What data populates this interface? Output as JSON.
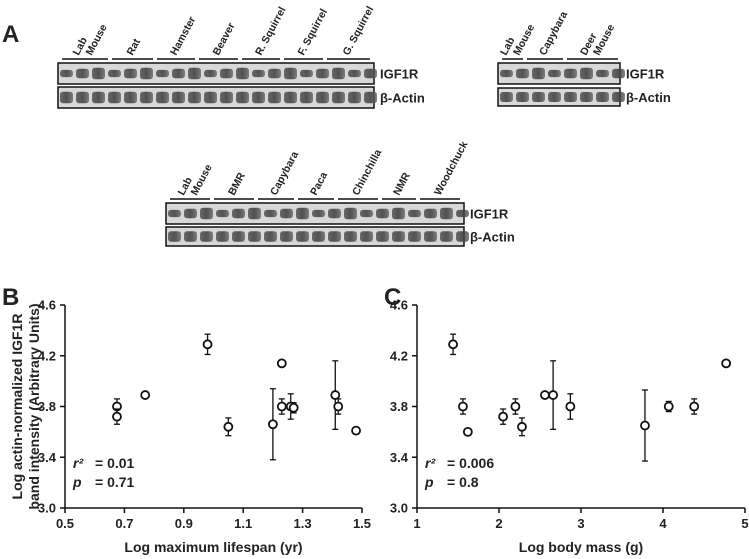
{
  "panel_labels": [
    "A",
    "B",
    "C"
  ],
  "blots": [
    {
      "lanes": [
        [
          "Lab",
          "Mouse"
        ],
        [
          "Rat"
        ],
        [
          "Hamster"
        ],
        [
          "Beaver"
        ],
        [
          "R. Squirrel"
        ],
        [
          "F. Squirrel"
        ],
        [
          "G. Squirrel"
        ]
      ],
      "rows": [
        "IGF1R",
        "β-Actin"
      ]
    },
    {
      "lanes": [
        [
          "Lab",
          "Mouse"
        ],
        [
          "Capybara"
        ],
        [
          "Deer",
          "Mouse"
        ]
      ],
      "rows": [
        "IGF1R",
        "β-Actin"
      ]
    },
    {
      "lanes": [
        [
          "Lab",
          "Mouse"
        ],
        [
          "BMR"
        ],
        [
          "Capybara"
        ],
        [
          "Paca"
        ],
        [
          "Chinchilla"
        ],
        [
          "NMR"
        ],
        [
          "Woodchuck"
        ]
      ],
      "rows": [
        "IGF1R",
        "β-Actin"
      ]
    }
  ],
  "chart_data": [
    {
      "type": "scatter",
      "xlabel": "Log maximum lifespan (yr)",
      "ylabel": [
        "Log actin-normalized IGF1R",
        "band intensity (Arbitrary Units)"
      ],
      "x": [
        0.675,
        0.675,
        0.77,
        0.98,
        1.05,
        1.2,
        1.23,
        1.23,
        1.26,
        1.27,
        1.41,
        1.42,
        1.48
      ],
      "values": [
        3.8,
        3.72,
        3.89,
        4.29,
        3.64,
        3.66,
        3.8,
        4.14,
        3.8,
        3.79,
        3.89,
        3.8,
        3.61
      ],
      "errors": [
        0.06,
        0.06,
        0.02,
        0.08,
        0.07,
        0.28,
        0.06,
        0.02,
        0.1,
        0.04,
        0.27,
        0.06,
        0.02
      ],
      "xlim": [
        0.5,
        1.5
      ],
      "xticks": [
        0.5,
        0.7,
        0.9,
        1.1,
        1.3,
        1.5
      ],
      "ylim": [
        3.0,
        4.6
      ],
      "yticks": [
        {
          "value": 3.0,
          "label": "3.0"
        },
        3.4,
        3.8,
        4.2,
        4.6
      ],
      "annotations": [
        {
          "label": "r²",
          "text": "= 0.01"
        },
        {
          "label": "p",
          "text": "= 0.71"
        }
      ]
    },
    {
      "type": "scatter",
      "xlabel": "Log body mass (g)",
      "x": [
        1.44,
        1.56,
        1.62,
        2.05,
        2.2,
        2.28,
        2.56,
        2.66,
        2.87,
        3.78,
        4.07,
        4.38,
        4.77
      ],
      "values": [
        4.29,
        3.8,
        3.6,
        3.72,
        3.8,
        3.64,
        3.89,
        3.89,
        3.8,
        3.65,
        3.8,
        3.8,
        4.14
      ],
      "errors": [
        0.08,
        0.06,
        0.02,
        0.06,
        0.06,
        0.07,
        0.02,
        0.27,
        0.1,
        0.28,
        0.04,
        0.06,
        0.02
      ],
      "xlim": [
        1,
        5
      ],
      "xticks": [
        1,
        2,
        3,
        4,
        5
      ],
      "ylim": [
        3.0,
        4.6
      ],
      "yticks": [
        {
          "value": 3.0,
          "label": "3.0"
        },
        3.4,
        3.8,
        4.2,
        4.6
      ],
      "annotations": [
        {
          "label": "r²",
          "text": "= 0.006"
        },
        {
          "label": "p",
          "text": "= 0.8"
        }
      ]
    }
  ]
}
